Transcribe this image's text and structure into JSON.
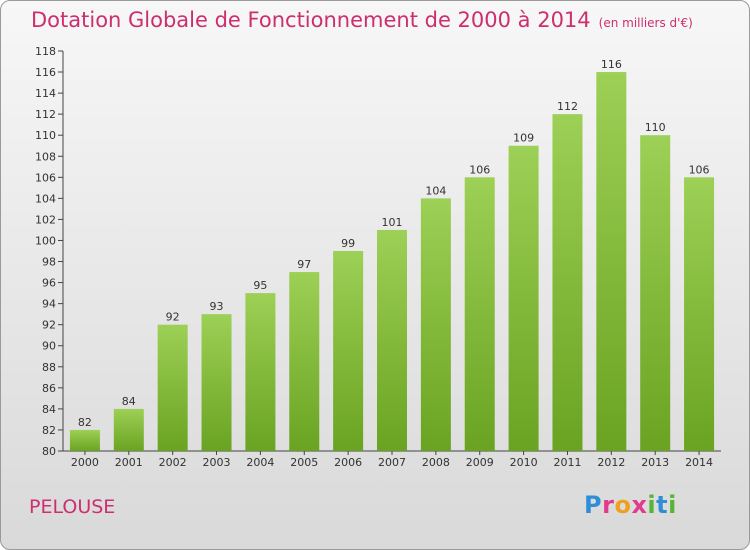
{
  "header": {
    "title": "Dotation Globale de Fonctionnement de 2000 à 2014",
    "unit": "(en milliers d'€)"
  },
  "footer": {
    "commune": "PELOUSE",
    "logo": "Proxiti",
    "logo_colors": [
      "#2f8fd6",
      "#e23a8c",
      "#f0a020",
      "#e23a8c",
      "#56b533",
      "#2f8fd6",
      "#56b533"
    ]
  },
  "chart_data": {
    "type": "bar",
    "categories": [
      "2000",
      "2001",
      "2002",
      "2003",
      "2004",
      "2005",
      "2006",
      "2007",
      "2008",
      "2009",
      "2010",
      "2011",
      "2012",
      "2013",
      "2014"
    ],
    "values": [
      82,
      84,
      92,
      93,
      95,
      97,
      99,
      101,
      104,
      106,
      109,
      112,
      116,
      110,
      106
    ],
    "ylim": [
      80,
      118
    ],
    "yticks": [
      80,
      82,
      84,
      86,
      88,
      90,
      92,
      94,
      96,
      98,
      100,
      102,
      104,
      106,
      108,
      110,
      112,
      114,
      116,
      118
    ],
    "grid": false,
    "bar_color_top": "#9dd056",
    "bar_color_bottom": "#6aa321"
  }
}
